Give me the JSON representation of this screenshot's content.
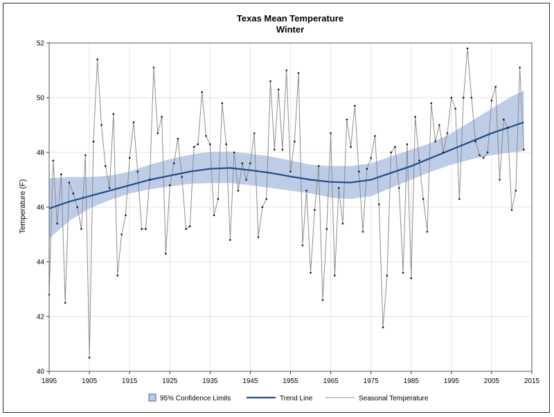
{
  "chart_data": {
    "type": "line",
    "title": "Texas Mean Temperature",
    "subtitle": "Winter",
    "xlabel": "",
    "ylabel": "Temperature (F)",
    "xlim": [
      1895,
      2015
    ],
    "ylim": [
      40,
      52
    ],
    "x_ticks": [
      1895,
      1905,
      1915,
      1925,
      1935,
      1945,
      1955,
      1965,
      1975,
      1985,
      1995,
      2005,
      2015
    ],
    "y_ticks": [
      40,
      42,
      44,
      46,
      48,
      50,
      52
    ],
    "grid": true,
    "legend": {
      "position": "bottom",
      "entries": [
        {
          "label": "95% Confidence Limits",
          "kind": "band",
          "color": "#b9c9e6",
          "border": "#4a5f8c"
        },
        {
          "label": "Trend Line",
          "kind": "line",
          "color": "#1f4b8a"
        },
        {
          "label": "Seasonal Temperature",
          "kind": "line",
          "color": "#8c8c8c"
        }
      ]
    },
    "series": [
      {
        "name": "Seasonal Temperature",
        "color": "#8c8c8c",
        "x": [
          1895,
          1896,
          1897,
          1898,
          1899,
          1900,
          1901,
          1902,
          1903,
          1904,
          1905,
          1906,
          1907,
          1908,
          1909,
          1910,
          1911,
          1912,
          1913,
          1914,
          1915,
          1916,
          1917,
          1918,
          1919,
          1920,
          1921,
          1922,
          1923,
          1924,
          1925,
          1926,
          1927,
          1928,
          1929,
          1930,
          1931,
          1932,
          1933,
          1934,
          1935,
          1936,
          1937,
          1938,
          1939,
          1940,
          1941,
          1942,
          1943,
          1944,
          1945,
          1946,
          1947,
          1948,
          1949,
          1950,
          1951,
          1952,
          1953,
          1954,
          1955,
          1956,
          1957,
          1958,
          1959,
          1960,
          1961,
          1962,
          1963,
          1964,
          1965,
          1966,
          1967,
          1968,
          1969,
          1970,
          1971,
          1972,
          1973,
          1974,
          1975,
          1976,
          1977,
          1978,
          1979,
          1980,
          1981,
          1982,
          1983,
          1984,
          1985,
          1986,
          1987,
          1988,
          1989,
          1990,
          1991,
          1992,
          1993,
          1994,
          1995,
          1996,
          1997,
          1998,
          1999,
          2000,
          2001,
          2002,
          2003,
          2004,
          2005,
          2006,
          2007,
          2008,
          2009,
          2010,
          2011,
          2012,
          2013
        ],
        "values": [
          42.8,
          47.7,
          45.4,
          47.2,
          42.5,
          46.9,
          46.5,
          46.0,
          45.2,
          47.9,
          40.5,
          48.4,
          51.4,
          49.0,
          47.5,
          46.7,
          49.4,
          43.5,
          45.0,
          45.7,
          47.8,
          49.1,
          47.3,
          45.2,
          45.2,
          47.0,
          51.1,
          48.7,
          49.3,
          44.3,
          46.8,
          47.6,
          48.5,
          47.1,
          45.2,
          45.3,
          48.2,
          48.3,
          50.2,
          48.6,
          48.3,
          45.7,
          46.3,
          49.8,
          48.3,
          44.8,
          48.0,
          46.6,
          47.6,
          47.0,
          47.6,
          48.7,
          44.9,
          46.0,
          46.3,
          50.6,
          48.1,
          50.3,
          48.1,
          51.0,
          47.3,
          48.4,
          50.9,
          44.6,
          46.6,
          43.6,
          45.9,
          47.5,
          42.6,
          45.2,
          48.7,
          43.5,
          46.7,
          45.4,
          49.2,
          48.2,
          49.7,
          47.3,
          45.1,
          47.4,
          47.8,
          48.6,
          46.1,
          41.6,
          43.5,
          48.0,
          48.2,
          46.7,
          43.6,
          48.3,
          43.4,
          49.3,
          47.7,
          46.3,
          45.1,
          49.8,
          48.4,
          49.0,
          48.0,
          48.7,
          50.0,
          49.6,
          46.3,
          50.0,
          51.8,
          50.0,
          48.4,
          47.9,
          47.8,
          48.0,
          49.9,
          50.4,
          47.0,
          49.2,
          48.9,
          45.9,
          46.6,
          51.1,
          48.1
        ]
      },
      {
        "name": "Trend Line",
        "color": "#1f4b8a",
        "x": [
          1895,
          1900,
          1905,
          1910,
          1915,
          1920,
          1925,
          1930,
          1935,
          1940,
          1945,
          1950,
          1955,
          1960,
          1965,
          1970,
          1975,
          1980,
          1985,
          1990,
          1995,
          2000,
          2005,
          2010,
          2013
        ],
        "values": [
          45.95,
          46.2,
          46.4,
          46.6,
          46.8,
          47.0,
          47.15,
          47.3,
          47.4,
          47.43,
          47.35,
          47.25,
          47.12,
          47.0,
          46.92,
          46.9,
          47.0,
          47.25,
          47.5,
          47.8,
          48.1,
          48.4,
          48.7,
          48.95,
          49.1
        ],
        "lower": [
          44.85,
          45.5,
          45.95,
          46.25,
          46.5,
          46.65,
          46.75,
          46.85,
          46.88,
          46.88,
          46.8,
          46.7,
          46.6,
          46.5,
          46.35,
          46.3,
          46.4,
          46.7,
          47.0,
          47.3,
          47.55,
          47.75,
          47.9,
          48.0,
          48.05
        ],
        "upper": [
          47.05,
          47.1,
          47.1,
          47.15,
          47.3,
          47.55,
          47.75,
          47.92,
          48.02,
          48.03,
          47.95,
          47.85,
          47.7,
          47.55,
          47.5,
          47.5,
          47.6,
          47.85,
          48.1,
          48.35,
          48.7,
          49.15,
          49.6,
          50.05,
          50.25
        ]
      }
    ]
  }
}
